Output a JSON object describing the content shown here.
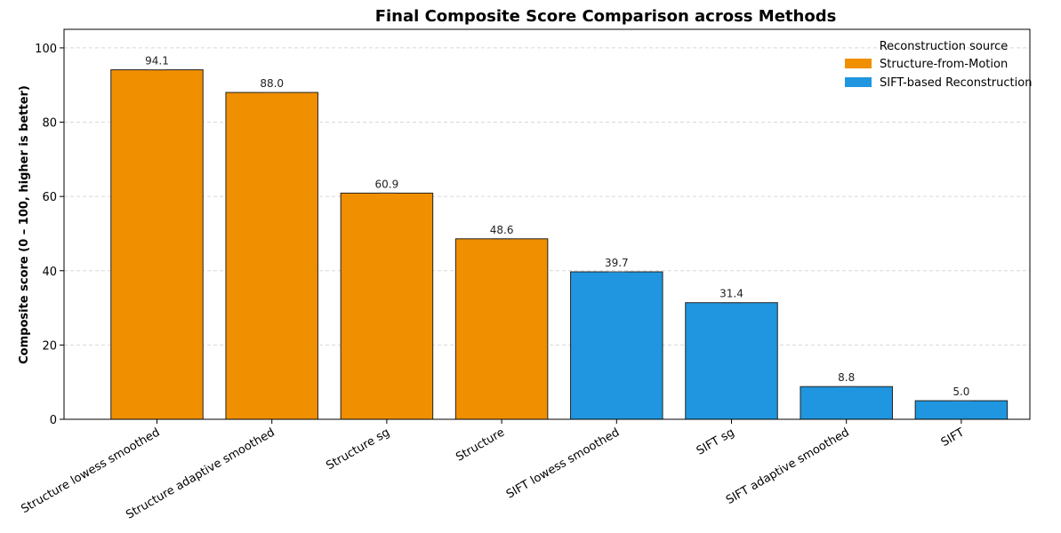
{
  "chart_data": {
    "type": "bar",
    "title": "Final Composite Score Comparison across Methods",
    "ylabel": "Composite score (0 – 100, higher is better)",
    "xlabel": "",
    "ylim": [
      0,
      105
    ],
    "yticks": [
      0,
      20,
      40,
      60,
      80,
      100
    ],
    "grid": "horizontal dashed",
    "categories": [
      "Structure lowess smoothed",
      "Structure adaptive smoothed",
      "Structure sg",
      "Structure",
      "SIFT lowess smoothed",
      "SIFT sg",
      "SIFT adaptive smoothed",
      "SIFT"
    ],
    "values": [
      94.1,
      88.0,
      60.9,
      48.6,
      39.7,
      31.4,
      8.8,
      5.0
    ],
    "value_labels": [
      "94.1",
      "88.0",
      "60.9",
      "48.6",
      "39.7",
      "31.4",
      "8.8",
      "5.0"
    ],
    "groups": [
      "sfm",
      "sfm",
      "sfm",
      "sfm",
      "sift",
      "sift",
      "sift",
      "sift"
    ],
    "legend": {
      "title": "Reconstruction source",
      "placement": "top-right",
      "entries": [
        {
          "key": "sfm",
          "label": "Structure-from-Motion",
          "color": "#F08F00"
        },
        {
          "key": "sift",
          "label": "SIFT-based Reconstruction",
          "color": "#1F96DF"
        }
      ]
    }
  }
}
